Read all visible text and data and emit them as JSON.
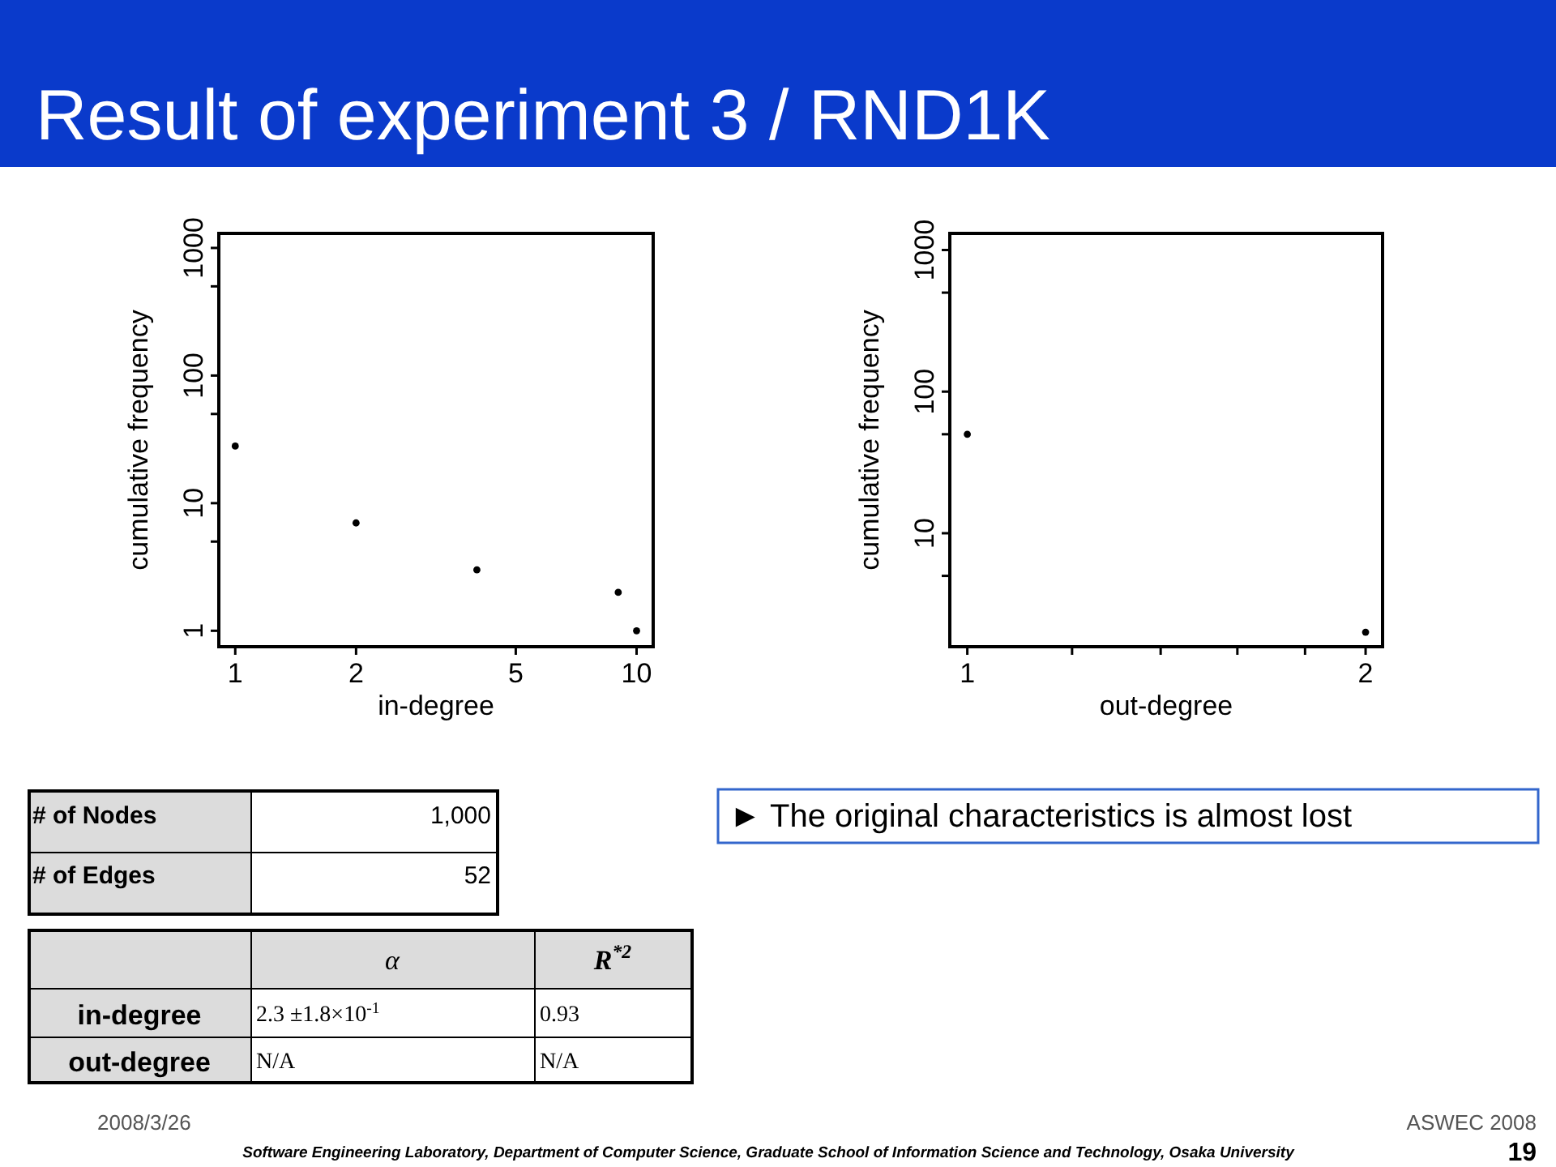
{
  "chart_data": [
    {
      "type": "scatter",
      "title": "Result of experiment 3 / RND1K",
      "xlabel": "in-degree",
      "ylabel": "cumulative frequency",
      "log": "xy",
      "marker": "circle",
      "x": [
        1,
        2,
        4,
        9,
        10
      ],
      "series": [
        {
          "color": "#000000",
          "values": [
            28,
            7,
            3,
            2,
            1
          ]
        }
      ],
      "xlim": [
        0.91,
        11
      ],
      "xticks": [
        1,
        2,
        5,
        10
      ],
      "ylim": [
        0.75,
        1300
      ],
      "yticks": [
        1,
        {
          "value": 5,
          "label": null
        },
        10,
        {
          "value": 50,
          "label": null
        },
        100,
        {
          "value": 500,
          "label": null
        },
        1000
      ]
    },
    {
      "type": "scatter",
      "xlabel": "out-degree",
      "ylabel": "cumulative frequency",
      "log": "xy",
      "marker": "circle",
      "x": [
        1,
        2
      ],
      "series": [
        {
          "color": "#000000",
          "values": [
            50,
            2
          ]
        }
      ],
      "xlim": [
        0.97,
        2.06
      ],
      "xticks": [
        1,
        {
          "value": 1.2,
          "label": null
        },
        {
          "value": 1.4,
          "label": null
        },
        {
          "value": 1.6,
          "label": null
        },
        {
          "value": 1.8,
          "label": null
        },
        2
      ],
      "ylim": [
        1.58,
        1310
      ],
      "yticks": [
        {
          "value": 5,
          "label": null
        },
        10,
        {
          "value": 50,
          "label": null
        },
        100,
        {
          "value": 500,
          "label": null
        },
        1000
      ]
    },
    {
      "type": "other",
      "annotations": [
        "# of Nodes",
        "1,000",
        "# of Edges",
        "52",
        "α",
        "R$^{*2}$",
        "in-degree",
        "2.3 ±1.8×10$^{-1}$",
        "0.93",
        "out-degree",
        "N/A",
        "N/A",
        "► The original characteristics is almost lost",
        "2008/3/26",
        "ASWEC 2008",
        "19",
        "Software Engineering Laboratory, Department of Computer Science, Graduate School of Information Science and Technology, Osaka University"
      ]
    }
  ]
}
